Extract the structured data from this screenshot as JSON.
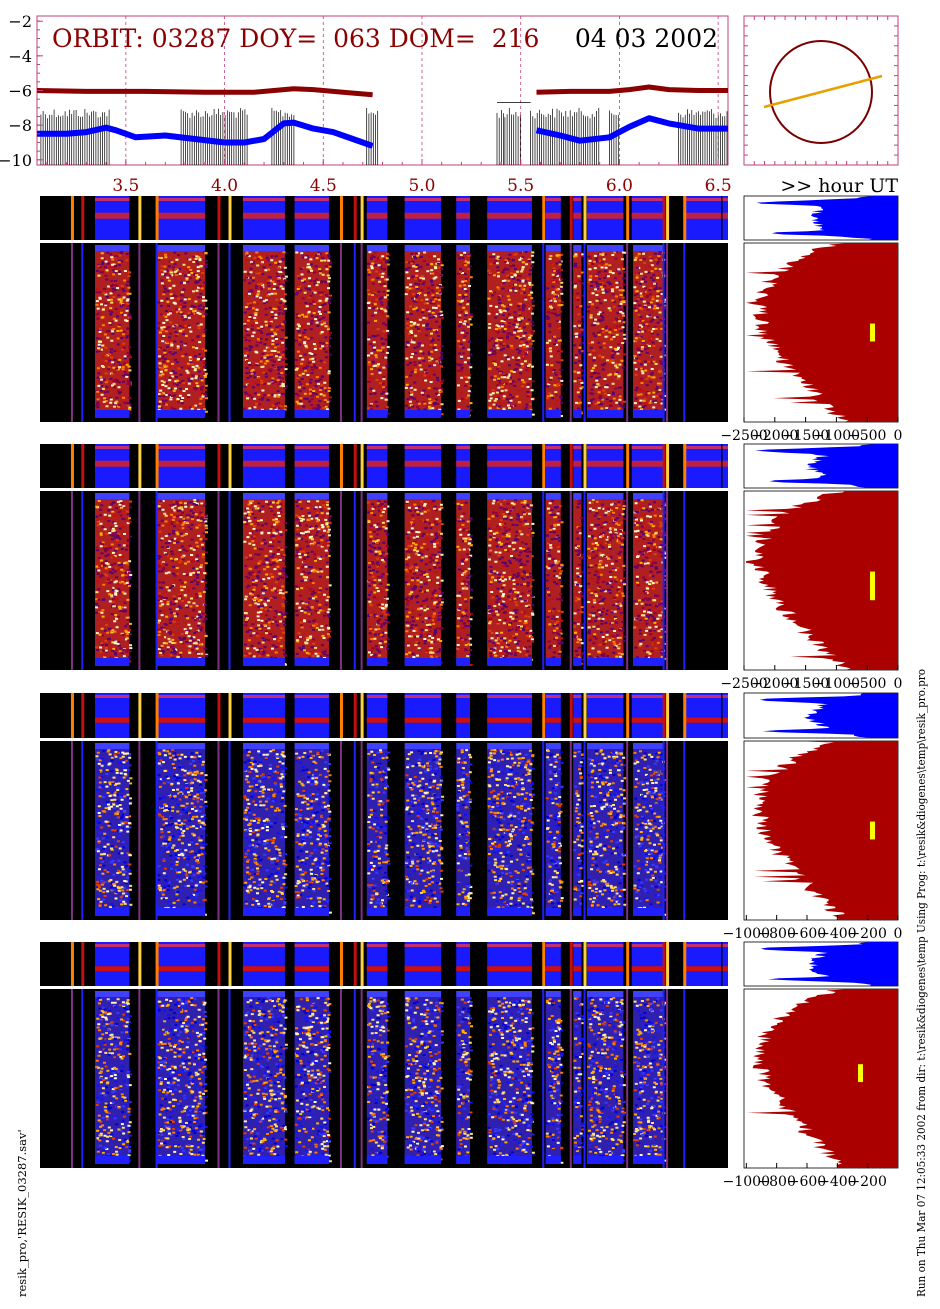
{
  "header": {
    "orbit_label": "ORBIT: 03287 DOY=  063 DOM=  216",
    "date": "04 03 2002",
    "hour_label": ">> hour UT"
  },
  "footer": {
    "left_text": "resik_pro,'RESIK_03287.sav'",
    "right_text": "Run on Thu Mar 07 12:05:33 2002  from dir: t:\\resik&diogenes\\temp Using Prog: t:\\resik&diogenes\\temp\\resik_pro.pro"
  },
  "colors": {
    "dark_red": "#8b0000",
    "blue": "#0000ff",
    "orange": "#e8a000",
    "pink_frame": "#c0407a",
    "hist_red": "#aa0000",
    "yellow": "#ffff00"
  },
  "chart_data": [
    {
      "type": "line",
      "name": "orbit-timeline",
      "ylim": [
        -10.3,
        -1.7
      ],
      "yticks": [
        "-2",
        "-4",
        "-6",
        "-8",
        "-10"
      ],
      "xlim": [
        3.05,
        6.55
      ],
      "xticks": [
        "3.5",
        "4.0",
        "4.5",
        "5.0",
        "5.5",
        "6.0",
        "6.5"
      ],
      "series": [
        {
          "color": "#8b0000",
          "segments": [
            [
              [
                3.05,
                -6.0
              ],
              [
                3.3,
                -6.05
              ],
              [
                3.6,
                -6.05
              ],
              [
                3.9,
                -6.1
              ],
              [
                4.15,
                -6.1
              ],
              [
                4.25,
                -6.0
              ],
              [
                4.35,
                -5.9
              ],
              [
                4.45,
                -5.95
              ],
              [
                4.6,
                -6.1
              ],
              [
                4.75,
                -6.25
              ]
            ],
            [
              [
                5.58,
                -6.1
              ],
              [
                5.75,
                -6.05
              ],
              [
                5.95,
                -6.05
              ],
              [
                6.05,
                -5.95
              ],
              [
                6.15,
                -5.8
              ],
              [
                6.25,
                -5.95
              ],
              [
                6.4,
                -6.0
              ],
              [
                6.55,
                -6.0
              ]
            ]
          ]
        },
        {
          "color": "#0000ff",
          "segments": [
            [
              [
                3.05,
                -8.5
              ],
              [
                3.2,
                -8.5
              ],
              [
                3.3,
                -8.4
              ],
              [
                3.4,
                -8.15
              ],
              [
                3.45,
                -8.3
              ],
              [
                3.55,
                -8.7
              ],
              [
                3.7,
                -8.6
              ],
              [
                3.85,
                -8.8
              ],
              [
                4.0,
                -9.0
              ],
              [
                4.1,
                -9.0
              ],
              [
                4.2,
                -8.8
              ],
              [
                4.3,
                -7.9
              ],
              [
                4.35,
                -7.85
              ],
              [
                4.45,
                -8.2
              ],
              [
                4.55,
                -8.4
              ],
              [
                4.65,
                -8.8
              ],
              [
                4.75,
                -9.2
              ]
            ],
            [
              [
                5.58,
                -8.3
              ],
              [
                5.7,
                -8.6
              ],
              [
                5.8,
                -8.9
              ],
              [
                5.95,
                -8.7
              ],
              [
                6.05,
                -8.1
              ],
              [
                6.15,
                -7.6
              ],
              [
                6.25,
                -7.9
              ],
              [
                6.4,
                -8.2
              ],
              [
                6.55,
                -8.2
              ]
            ]
          ]
        }
      ]
    },
    {
      "type": "line",
      "name": "orbit-track-inset"
    },
    {
      "type": "heatmap",
      "name": "detector-spectrograms",
      "detectors": [
        {
          "hist_ticks": [
            "-2500",
            "-2000",
            "-1500",
            "-1000",
            "-500",
            "0"
          ],
          "hist_min": -2500
        },
        {
          "hist_ticks": [
            "-2500",
            "-2000",
            "-1500",
            "-1000",
            "-500",
            "0"
          ],
          "hist_min": -2500
        },
        {
          "hist_ticks": [
            "-1000",
            "-800",
            "-600",
            "-400",
            "-200",
            "0"
          ],
          "hist_min": -1000
        },
        {
          "hist_ticks": [
            "-1000",
            "-800",
            "-600",
            "-400",
            "-200"
          ],
          "hist_min": -1000
        }
      ]
    }
  ]
}
